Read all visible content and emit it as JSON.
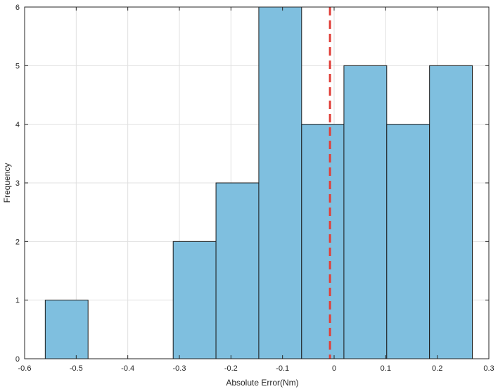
{
  "chart_data": {
    "type": "bar",
    "subtype": "histogram",
    "bin_edges": [
      -0.56,
      -0.477,
      -0.395,
      -0.312,
      -0.229,
      -0.146,
      -0.063,
      0.019,
      0.102,
      0.185,
      0.268
    ],
    "counts": [
      1,
      0,
      0,
      2,
      3,
      6,
      4,
      5,
      4,
      5
    ],
    "xlabel": "Absolute Error(Nm)",
    "ylabel": "Frequency",
    "xlim": [
      -0.6,
      0.3
    ],
    "ylim": [
      0,
      6
    ],
    "x_ticks": [
      -0.6,
      -0.5,
      -0.4,
      -0.3,
      -0.2,
      -0.1,
      0,
      0.1,
      0.2,
      0.3
    ],
    "x_tick_labels": [
      "-0.6",
      "-0.5",
      "-0.4",
      "-0.3",
      "-0.2",
      "-0.1",
      "0",
      "0.1",
      "0.2",
      "0.3"
    ],
    "y_ticks": [
      0,
      1,
      2,
      3,
      4,
      5,
      6
    ],
    "y_tick_labels": [
      "0",
      "1",
      "2",
      "3",
      "4",
      "5",
      "6"
    ],
    "grid": true,
    "reference_line": {
      "x": -0.008,
      "style": "dashed"
    },
    "colors": {
      "bar_fill": "#7fbfdf",
      "bar_edge": "#1a1a1a",
      "reference_line": "#e0403a",
      "grid": "#e0e0e0",
      "axis": "#262626"
    }
  }
}
